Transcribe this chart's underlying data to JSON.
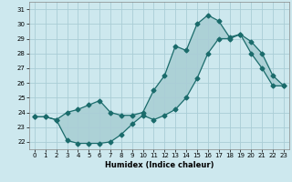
{
  "xlabel": "Humidex (Indice chaleur)",
  "xlim": [
    -0.5,
    23.5
  ],
  "ylim": [
    21.5,
    31.5
  ],
  "yticks": [
    22,
    23,
    24,
    25,
    26,
    27,
    28,
    29,
    30,
    31
  ],
  "xticks": [
    0,
    1,
    2,
    3,
    4,
    5,
    6,
    7,
    8,
    9,
    10,
    11,
    12,
    13,
    14,
    15,
    16,
    17,
    18,
    19,
    20,
    21,
    22,
    23
  ],
  "background_color": "#cde8ee",
  "grid_color": "#aacdd6",
  "line_color": "#1a6b6b",
  "line1_x": [
    0,
    1,
    2,
    3,
    4,
    5,
    6,
    7,
    8,
    9,
    10,
    11,
    12,
    13,
    14,
    15,
    16,
    17,
    18,
    19,
    20,
    21,
    22,
    23
  ],
  "line1_y": [
    23.7,
    23.7,
    23.5,
    24.0,
    24.2,
    24.5,
    24.8,
    24.0,
    23.8,
    23.8,
    24.0,
    25.5,
    26.5,
    28.5,
    28.2,
    30.0,
    30.6,
    30.2,
    29.1,
    29.3,
    28.0,
    27.0,
    25.8,
    25.8
  ],
  "line2_x": [
    0,
    1,
    2,
    3,
    4,
    5,
    6,
    7,
    8,
    9,
    10,
    11,
    12,
    13,
    14,
    15,
    16,
    17,
    18,
    19,
    20,
    21,
    22,
    23
  ],
  "line2_y": [
    23.7,
    23.7,
    23.5,
    22.1,
    21.9,
    21.9,
    21.9,
    22.0,
    22.5,
    23.2,
    23.8,
    23.5,
    23.8,
    24.2,
    25.0,
    26.3,
    28.0,
    29.0,
    29.0,
    29.3,
    28.8,
    28.0,
    26.5,
    25.8
  ]
}
